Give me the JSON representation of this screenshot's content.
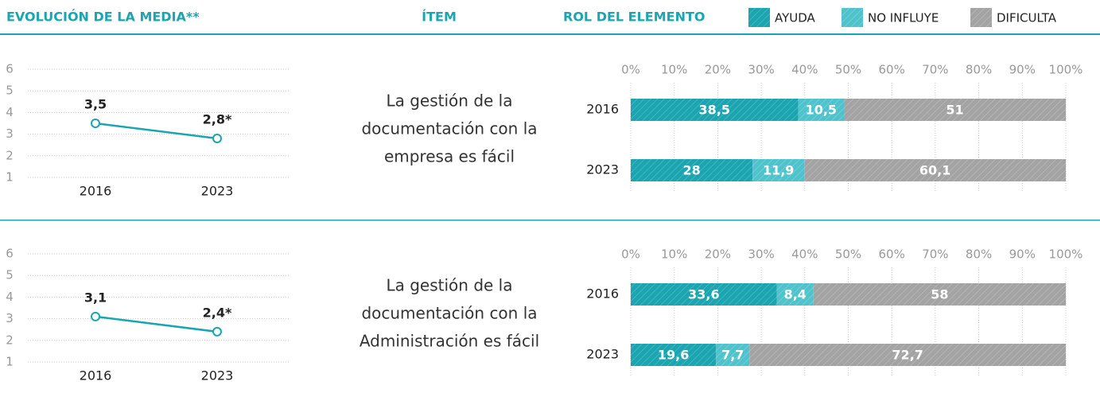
{
  "header": {
    "evolution": "EVOLUCIÓN DE LA MEDIA**",
    "item": "ÍTEM",
    "role": "ROL DEL ELEMENTO"
  },
  "items": [
    [
      "La gestión de la",
      "documentación con la",
      "empresa es fácil"
    ],
    [
      "La gestión de la",
      "documentación con la",
      "Administración es fácil"
    ]
  ],
  "chart_data": [
    {
      "type": "line",
      "categories": [
        "2016",
        "2023"
      ],
      "values": [
        3.5,
        2.8
      ],
      "value_labels": [
        "3,5",
        "2,8*"
      ],
      "color": "#1aa5b0",
      "ylim": [
        1,
        6
      ],
      "yticks": [
        1,
        2,
        3,
        4,
        5,
        6
      ],
      "grid": true
    },
    {
      "type": "stacked_barh",
      "categories": [
        "2016",
        "2023"
      ],
      "series": [
        {
          "name": "AYUDA",
          "color": "#1aa5b0",
          "values": [
            38.5,
            28
          ],
          "value_labels": [
            "38,5",
            "28"
          ]
        },
        {
          "name": "NO INFLUYE",
          "color": "#4fc3cc",
          "values": [
            10.5,
            11.9
          ],
          "value_labels": [
            "10,5",
            "11,9"
          ]
        },
        {
          "name": "DIFICULTA",
          "color": "#a3a3a3",
          "values": [
            51,
            60.1
          ],
          "value_labels": [
            "51",
            "60,1"
          ]
        }
      ],
      "xlim": [
        0,
        100
      ],
      "xticks": [
        {
          "value": 0,
          "label": "0%"
        },
        {
          "value": 10,
          "label": "10%"
        },
        {
          "value": 20,
          "label": "20%"
        },
        {
          "value": 30,
          "label": "30%"
        },
        {
          "value": 40,
          "label": "40%"
        },
        {
          "value": 50,
          "label": "50%"
        },
        {
          "value": 60,
          "label": "60%"
        },
        {
          "value": 70,
          "label": "70%"
        },
        {
          "value": 80,
          "label": "80%"
        },
        {
          "value": 90,
          "label": "90%"
        },
        {
          "value": 100,
          "label": "100%"
        }
      ],
      "grid": true
    },
    {
      "type": "line",
      "categories": [
        "2016",
        "2023"
      ],
      "values": [
        3.1,
        2.4
      ],
      "value_labels": [
        "3,1",
        "2,4*"
      ],
      "color": "#1aa5b0",
      "ylim": [
        1,
        6
      ],
      "yticks": [
        1,
        2,
        3,
        4,
        5,
        6
      ],
      "grid": true
    },
    {
      "type": "stacked_barh",
      "categories": [
        "2016",
        "2023"
      ],
      "series": [
        {
          "name": "AYUDA",
          "color": "#1aa5b0",
          "values": [
            33.6,
            19.6
          ],
          "value_labels": [
            "33,6",
            "19,6"
          ]
        },
        {
          "name": "NO INFLUYE",
          "color": "#4fc3cc",
          "values": [
            8.4,
            7.7
          ],
          "value_labels": [
            "8,4",
            "7,7"
          ]
        },
        {
          "name": "DIFICULTA",
          "color": "#a3a3a3",
          "values": [
            58,
            72.7
          ],
          "value_labels": [
            "58",
            "72,7"
          ]
        }
      ],
      "xlim": [
        0,
        100
      ],
      "xticks": [
        {
          "value": 0,
          "label": "0%"
        },
        {
          "value": 10,
          "label": "10%"
        },
        {
          "value": 20,
          "label": "20%"
        },
        {
          "value": 30,
          "label": "30%"
        },
        {
          "value": 40,
          "label": "40%"
        },
        {
          "value": 50,
          "label": "50%"
        },
        {
          "value": 60,
          "label": "60%"
        },
        {
          "value": 70,
          "label": "70%"
        },
        {
          "value": 80,
          "label": "80%"
        },
        {
          "value": 90,
          "label": "90%"
        },
        {
          "value": 100,
          "label": "100%"
        }
      ],
      "grid": true
    }
  ]
}
